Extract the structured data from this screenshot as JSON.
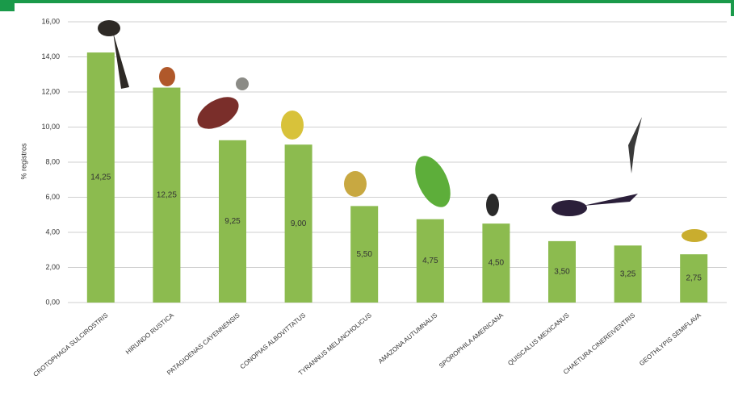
{
  "chart_data": {
    "type": "bar",
    "ylabel": "% registros",
    "categories": [
      "CROTOPHAGA SULCIROSTRIS",
      "HIRUNDO RUSTICA",
      "PATAGIOENAS CAYENNENSIS",
      "CONOPIAS ALBOVITTATUS",
      "TYRANNUS MELANCHOLICUS",
      "AMAZONA AUTUMNALIS",
      "SPOROPHILA AMERICANA",
      "QUISCALUS MEXICANUS",
      "CHAETURA CINEREIVENTRIS",
      "GEOTHLYPIS SEMIFLAVA"
    ],
    "values": [
      14.25,
      12.25,
      9.25,
      9.0,
      5.5,
      4.75,
      4.5,
      3.5,
      3.25,
      2.75
    ],
    "value_labels": [
      "14,25",
      "12,25",
      "9,25",
      "9,00",
      "5,50",
      "4,75",
      "4,50",
      "3,50",
      "3,25",
      "2,75"
    ],
    "color": "#8cbb4f",
    "ylim": [
      0,
      16
    ],
    "yticks": [
      {
        "value": 0,
        "label": "0,00"
      },
      {
        "value": 2,
        "label": "2,00"
      },
      {
        "value": 4,
        "label": "4,00"
      },
      {
        "value": 6,
        "label": "6,00"
      },
      {
        "value": 8,
        "label": "8,00"
      },
      {
        "value": 10,
        "label": "10,00"
      },
      {
        "value": 12,
        "label": "12,00"
      },
      {
        "value": 14,
        "label": "14,00"
      },
      {
        "value": 16,
        "label": "16,00"
      }
    ],
    "grid": true
  }
}
